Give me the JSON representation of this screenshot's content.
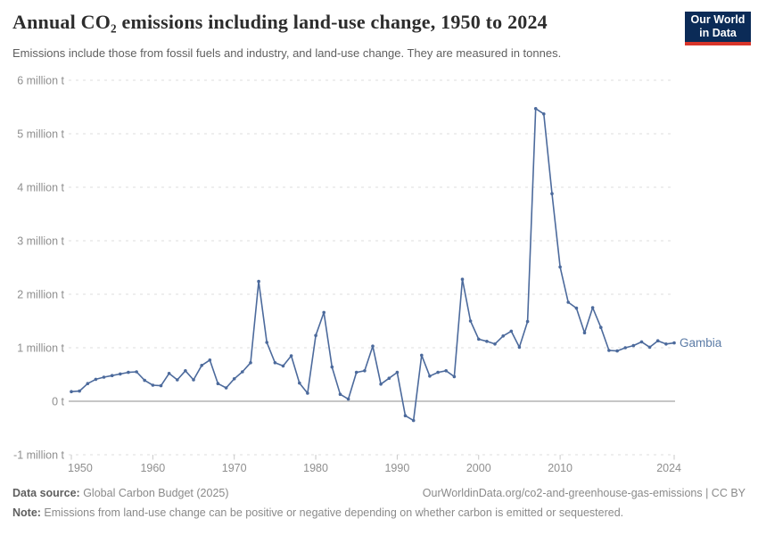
{
  "header": {
    "title": "Annual CO₂ emissions including land-use change, 1950 to 2024",
    "subtitle": "Emissions include those from fossil fuels and industry, and land-use change. They are measured in tonnes."
  },
  "logo": {
    "line1": "Our World",
    "line2": "in Data",
    "bg_color": "#0b2b57",
    "accent_color": "#d8352a"
  },
  "footer": {
    "data_source_label": "Data source:",
    "data_source_value": " Global Carbon Budget (2025)",
    "attribution": "OurWorldinData.org/co2-and-greenhouse-gas-emissions | CC BY",
    "note_label": "Note:",
    "note_value": " Emissions from land-use change can be positive or negative depending on whether carbon is emitted or sequestered."
  },
  "chart_data": {
    "type": "line",
    "title": "Annual CO₂ emissions including land-use change, 1950 to 2024",
    "entity_label": "Gambia",
    "unit": "t",
    "xlabel": "",
    "ylabel": "",
    "xlim": [
      1950,
      2024
    ],
    "ylim": [
      -1,
      6
    ],
    "grid": "dashed-horizontal",
    "legend_position": "end-of-line-label",
    "line_color": "#4c6a9c",
    "entity_label_color": "#5b7ba6",
    "grid_color": "#dcdcdc",
    "zero_line_color": "#b3b3b3",
    "tick_label_color": "#8f8f8f",
    "yticks": [
      {
        "value": 6,
        "label": "6 million t"
      },
      {
        "value": 5,
        "label": "5 million t"
      },
      {
        "value": 4,
        "label": "4 million t"
      },
      {
        "value": 3,
        "label": "3 million t"
      },
      {
        "value": 2,
        "label": "2 million t"
      },
      {
        "value": 1,
        "label": "1 million t"
      },
      {
        "value": 0,
        "label": "0 t"
      },
      {
        "value": -1,
        "label": "-1 million t"
      }
    ],
    "xticks": [
      {
        "value": 1950,
        "label": "1950",
        "align": "start"
      },
      {
        "value": 1960,
        "label": "1960",
        "align": "middle"
      },
      {
        "value": 1970,
        "label": "1970",
        "align": "middle"
      },
      {
        "value": 1980,
        "label": "1980",
        "align": "middle"
      },
      {
        "value": 1990,
        "label": "1990",
        "align": "middle"
      },
      {
        "value": 2000,
        "label": "2000",
        "align": "middle"
      },
      {
        "value": 2010,
        "label": "2010",
        "align": "middle"
      },
      {
        "value": 2024,
        "label": "2024",
        "align": "end"
      }
    ],
    "series": [
      {
        "name": "Gambia",
        "x_start": 1950,
        "x_step": 1,
        "values_million_t": [
          0.18,
          0.19,
          0.33,
          0.41,
          0.45,
          0.48,
          0.51,
          0.54,
          0.55,
          0.39,
          0.3,
          0.29,
          0.52,
          0.4,
          0.57,
          0.4,
          0.67,
          0.77,
          0.33,
          0.25,
          0.42,
          0.55,
          0.72,
          2.24,
          1.1,
          0.72,
          0.66,
          0.85,
          0.34,
          0.15,
          1.23,
          1.66,
          0.64,
          0.13,
          0.04,
          0.54,
          0.57,
          1.03,
          0.32,
          0.43,
          0.54,
          -0.27,
          -0.36,
          0.86,
          0.47,
          0.54,
          0.57,
          0.46,
          2.28,
          1.5,
          1.16,
          1.12,
          1.07,
          1.22,
          1.31,
          1.01,
          1.49,
          5.47,
          5.37,
          3.88,
          2.51,
          1.85,
          1.74,
          1.28,
          1.75,
          1.38,
          0.95,
          0.94,
          1.0,
          1.04,
          1.11,
          1.01,
          1.13,
          1.07,
          1.09
        ]
      }
    ]
  }
}
